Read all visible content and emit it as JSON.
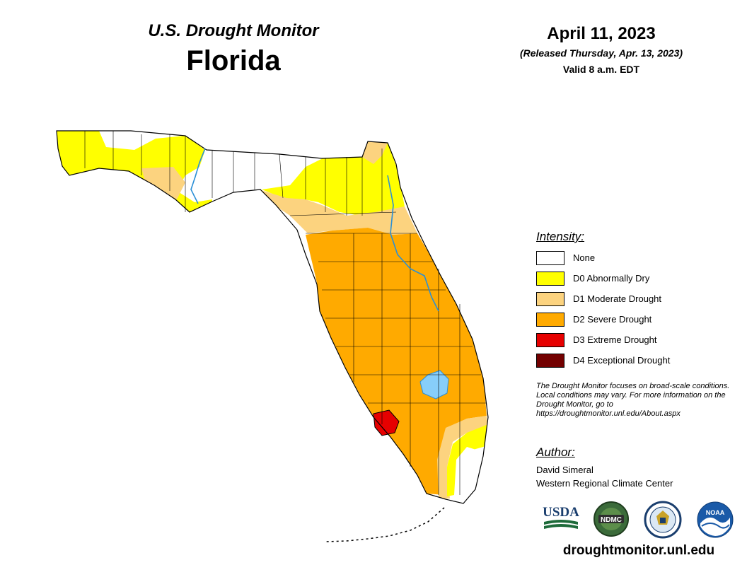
{
  "header": {
    "subtitle": "U.S. Drought Monitor",
    "state": "Florida",
    "date": "April 11, 2023",
    "released": "(Released Thursday, Apr. 13, 2023)",
    "valid": "Valid 8 a.m. EDT"
  },
  "legend": {
    "title": "Intensity:",
    "items": [
      {
        "label": "None",
        "color": "#ffffff"
      },
      {
        "label": "D0 Abnormally Dry",
        "color": "#ffff00"
      },
      {
        "label": "D1 Moderate Drought",
        "color": "#fcd37f"
      },
      {
        "label": "D2 Severe Drought",
        "color": "#ffaa00"
      },
      {
        "label": "D3 Extreme Drought",
        "color": "#e60000"
      },
      {
        "label": "D4 Exceptional Drought",
        "color": "#730000"
      }
    ]
  },
  "disclaimer": "The Drought Monitor focuses on broad-scale conditions. Local conditions may vary. For more information on the Drought Monitor, go to https://droughtmonitor.unl.edu/About.aspx",
  "author": {
    "title": "Author:",
    "name": "David Simeral",
    "org": "Western Regional Climate Center"
  },
  "logos": {
    "usda": "USDA",
    "ndmc": "NDMC",
    "noaa": "NOAA"
  },
  "site_url": "droughtmonitor.unl.edu",
  "colors": {
    "none": "#ffffff",
    "d0": "#ffff00",
    "d1": "#fcd37f",
    "d2": "#ffaa00",
    "d3": "#e60000",
    "d4": "#730000",
    "water": "#87cefa",
    "river": "#2a8fd6"
  }
}
